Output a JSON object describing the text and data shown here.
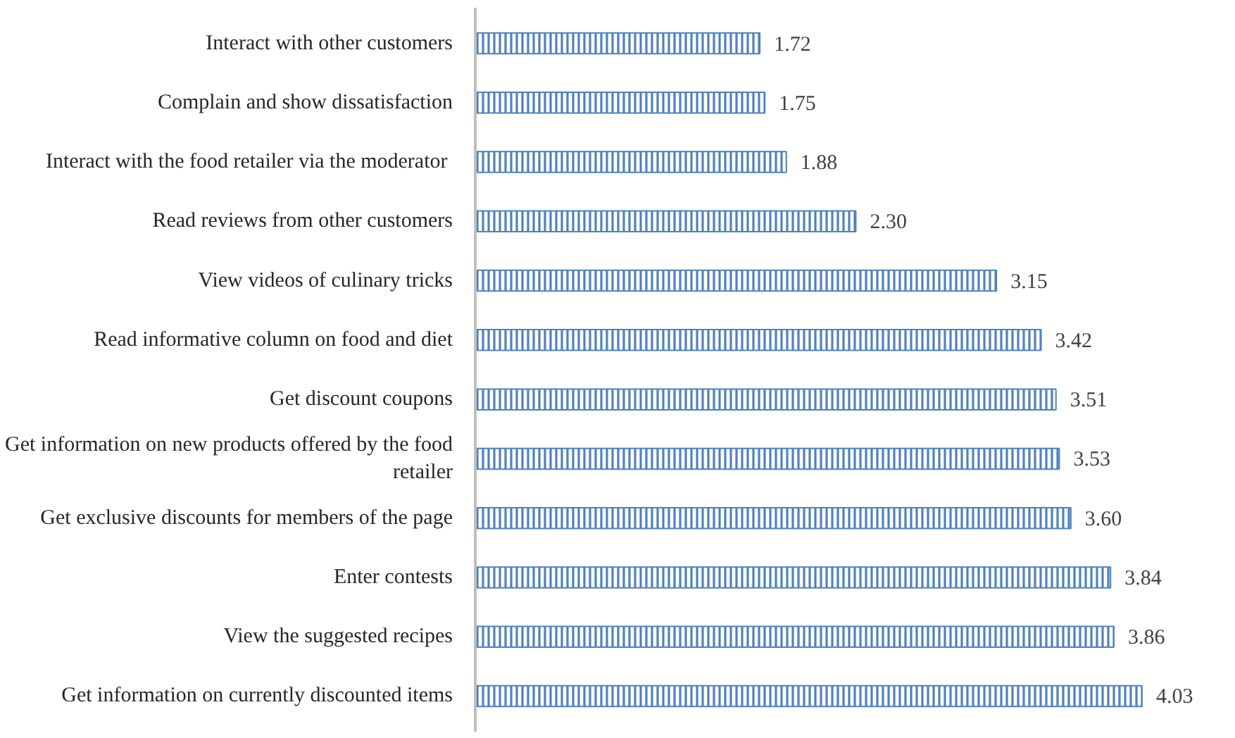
{
  "chart_data": {
    "type": "bar",
    "orientation": "horizontal",
    "categories": [
      "Interact with other customers",
      "Complain and show dissatisfaction",
      "Interact with the food retailer  via the moderator",
      "Read reviews from other customers",
      "View videos of culinary tricks",
      "Read informative column on food and diet",
      "Get discount coupons",
      "Get information on new products offered by the food retailer",
      "Get exclusive discounts for members of the page",
      "Enter contests ",
      "View the suggested recipes",
      "Get information on currently discounted items"
    ],
    "values": [
      1.72,
      1.75,
      1.88,
      2.3,
      3.15,
      3.42,
      3.51,
      3.53,
      3.6,
      3.84,
      3.86,
      4.03
    ],
    "value_labels": [
      "1.72",
      "1.75",
      "1.88",
      "2.30",
      "3.15",
      "3.42",
      "3.51",
      "3.53",
      "3.60",
      "3.84",
      "3.86",
      "4.03"
    ],
    "color": "#4f81bd"
  }
}
